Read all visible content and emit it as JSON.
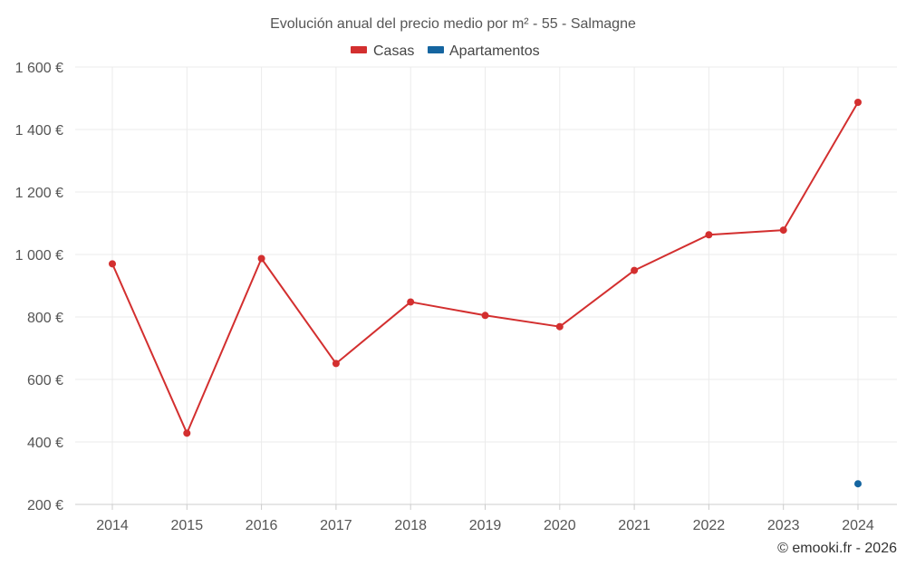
{
  "chart_data": {
    "type": "line",
    "title": "Evolución anual del precio medio por m² - 55 - Salmagne",
    "categories": [
      "2014",
      "2015",
      "2016",
      "2017",
      "2018",
      "2019",
      "2020",
      "2021",
      "2022",
      "2023",
      "2024"
    ],
    "ylim": [
      200,
      1600
    ],
    "yticks": [
      200,
      400,
      600,
      800,
      1000,
      1200,
      1400,
      1600
    ],
    "ytick_labels": [
      "200 €",
      "400 €",
      "600 €",
      "800 €",
      "1 000 €",
      "1 200 €",
      "1 400 €",
      "1 600 €"
    ],
    "grid": true,
    "legend_position": "top-center",
    "series": [
      {
        "name": "Casas",
        "color": "#d32f2f",
        "values": [
          970,
          428,
          987,
          651,
          848,
          805,
          769,
          949,
          1063,
          1078,
          1487
        ]
      },
      {
        "name": "Apartamentos",
        "color": "#1565a0",
        "values": [
          null,
          null,
          null,
          null,
          null,
          null,
          null,
          null,
          null,
          null,
          266
        ]
      }
    ],
    "credit": "© emooki.fr - 2026"
  }
}
